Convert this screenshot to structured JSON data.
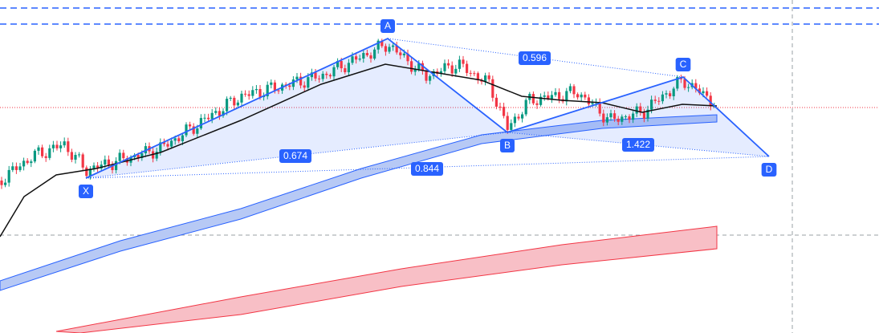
{
  "pattern": {
    "points": [
      "X",
      "A",
      "B",
      "C",
      "D"
    ],
    "ratios": [
      "0.674",
      "0.596",
      "0.844",
      "1.422"
    ]
  }
}
